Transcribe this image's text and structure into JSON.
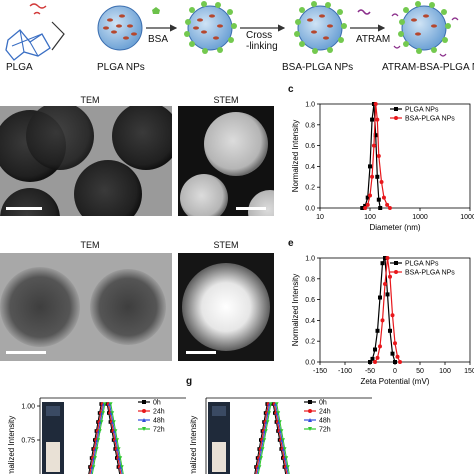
{
  "scheme": {
    "steps": [
      {
        "label": "PLGA"
      },
      {
        "label": "PLGA NPs"
      },
      {
        "label": "BSA-PLGA NPs"
      },
      {
        "label": "ATRAM-BSA-PLGA N"
      }
    ],
    "arrows": [
      "BSA",
      "Cross\n-linking",
      "ATRAM"
    ]
  },
  "micrographs": {
    "row1": {
      "tem_title": "TEM",
      "stem_title": "STEM"
    },
    "row2": {
      "tem_title": "TEM",
      "stem_title": "STEM"
    }
  },
  "panel_letters": {
    "c": "c",
    "e": "e",
    "g": "g"
  },
  "chart_data": [
    {
      "id": "c",
      "type": "line",
      "xlabel": "Diameter (nm)",
      "ylabel": "Normalized Intensity",
      "x_scale": "log",
      "xlim": [
        10,
        10000
      ],
      "ylim": [
        0,
        1.0
      ],
      "x_ticks": [
        "10",
        "100",
        "1000",
        "10000"
      ],
      "y_ticks": [
        "0.0",
        "0.2",
        "0.4",
        "0.6",
        "0.8",
        "1.0"
      ],
      "legend": "top-right",
      "series": [
        {
          "name": "PLGA NPs",
          "color": "#000000",
          "marker": "square",
          "x": [
            70,
            80,
            90,
            100,
            110,
            120,
            130,
            140,
            150,
            160
          ],
          "y": [
            0.0,
            0.02,
            0.1,
            0.4,
            0.85,
            1.0,
            0.7,
            0.3,
            0.08,
            0.0
          ]
        },
        {
          "name": "BSA-PLGA NPs",
          "color": "#e8171b",
          "marker": "circle",
          "x": [
            80,
            90,
            100,
            110,
            120,
            130,
            140,
            150,
            170,
            190,
            220,
            250
          ],
          "y": [
            0.0,
            0.03,
            0.12,
            0.3,
            0.6,
            1.0,
            0.85,
            0.5,
            0.25,
            0.1,
            0.03,
            0.0
          ]
        }
      ]
    },
    {
      "id": "e",
      "type": "line",
      "xlabel": "Zeta Potential (mV)",
      "ylabel": "Normalized Intensity",
      "xlim": [
        -150,
        150
      ],
      "ylim": [
        0,
        1.0
      ],
      "x_ticks": [
        "-150",
        "-100",
        "-50",
        "0",
        "50",
        "100",
        "150"
      ],
      "y_ticks": [
        "0.0",
        "0.2",
        "0.4",
        "0.6",
        "0.8",
        "1.0"
      ],
      "legend": "top-right",
      "series": [
        {
          "name": "PLGA NPs",
          "color": "#000000",
          "marker": "square",
          "x": [
            -50,
            -45,
            -40,
            -35,
            -30,
            -25,
            -20,
            -15,
            -10,
            -5,
            0
          ],
          "y": [
            0.0,
            0.03,
            0.12,
            0.3,
            0.62,
            0.95,
            1.0,
            0.65,
            0.3,
            0.08,
            0.0
          ]
        },
        {
          "name": "BSA-PLGA NPs",
          "color": "#e8171b",
          "marker": "circle",
          "x": [
            -40,
            -35,
            -30,
            -25,
            -20,
            -15,
            -10,
            -5,
            0,
            5,
            10
          ],
          "y": [
            0.0,
            0.04,
            0.15,
            0.4,
            0.75,
            1.0,
            0.82,
            0.45,
            0.18,
            0.05,
            0.0
          ]
        }
      ]
    },
    {
      "id": "f",
      "type": "line",
      "ylabel": "Normalized Intensity",
      "y_ticks": [
        "1.00",
        "0.75"
      ],
      "legend": "top-right",
      "series": [
        {
          "name": "0h",
          "color": "#000000",
          "marker": "square"
        },
        {
          "name": "24h",
          "color": "#e8171b",
          "marker": "circle"
        },
        {
          "name": "48h",
          "color": "#2f4cdb",
          "marker": "triangle"
        },
        {
          "name": "72h",
          "color": "#2fc72f",
          "marker": "triangle-down"
        }
      ]
    },
    {
      "id": "g",
      "type": "line",
      "ylabel": "Normalized Intensity",
      "legend": "top-right",
      "series": [
        {
          "name": "0h",
          "color": "#000000",
          "marker": "square"
        },
        {
          "name": "24h",
          "color": "#e8171b",
          "marker": "circle"
        },
        {
          "name": "48h",
          "color": "#2f4cdb",
          "marker": "triangle"
        },
        {
          "name": "72h",
          "color": "#2fc72f",
          "marker": "triangle-down"
        }
      ]
    }
  ]
}
